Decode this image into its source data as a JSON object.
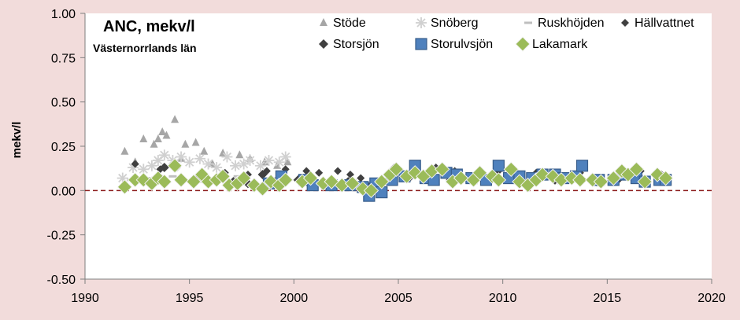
{
  "colors": {
    "background": "#f2dcdb",
    "plot_area": "#ffffff",
    "zero_line": "#8b1a1a",
    "stode": "#a6a6a6",
    "snoberg": "#d0d0d0",
    "ruskhojden": "#bfbfbf",
    "hallvattnet": "#404040",
    "storsjon": "#404040",
    "storulvsjon_fill": "#4f81bd",
    "storulvsjon_edge": "#385d8a",
    "lakamark_fill": "#9bbb59",
    "lakamark_edge": "#f2f2f2"
  },
  "chart_data": {
    "type": "scatter",
    "title": "ANC, mekv/l",
    "subtitle": "Västernorrlands län",
    "xlabel": "",
    "ylabel": "mekv/l",
    "xlim": [
      1990,
      2020
    ],
    "ylim": [
      -0.5,
      1.0
    ],
    "x_ticks": [
      "1990",
      "1995",
      "2000",
      "2005",
      "2010",
      "2015",
      "2020"
    ],
    "y_ticks": [
      "1.00",
      "0.75",
      "0.50",
      "0.25",
      "0.00",
      "-0.25",
      "-0.50"
    ],
    "grid": false,
    "reference_line": 0.0,
    "legend_position": "top-right",
    "series": [
      {
        "name": "Stöde",
        "marker": "triangle",
        "points": [
          [
            1991.9,
            0.22
          ],
          [
            1992.4,
            0.16
          ],
          [
            1992.8,
            0.29
          ],
          [
            1993.3,
            0.26
          ],
          [
            1993.5,
            0.29
          ],
          [
            1993.7,
            0.33
          ],
          [
            1993.9,
            0.31
          ],
          [
            1994.3,
            0.4
          ],
          [
            1994.6,
            0.18
          ],
          [
            1994.8,
            0.26
          ],
          [
            1995.3,
            0.27
          ],
          [
            1995.7,
            0.22
          ],
          [
            1996.1,
            0.15
          ],
          [
            1996.6,
            0.21
          ],
          [
            1997.4,
            0.2
          ],
          [
            1997.9,
            0.18
          ],
          [
            1998.6,
            0.16
          ],
          [
            1999.2,
            0.14
          ],
          [
            1999.7,
            0.16
          ]
        ]
      },
      {
        "name": "Snöberg",
        "marker": "asterisk",
        "points": [
          [
            1991.8,
            0.07
          ],
          [
            1992.3,
            0.13
          ],
          [
            1992.8,
            0.12
          ],
          [
            1993.2,
            0.14
          ],
          [
            1993.5,
            0.17
          ],
          [
            1993.8,
            0.2
          ],
          [
            1994.2,
            0.17
          ],
          [
            1994.6,
            0.19
          ],
          [
            1995.0,
            0.16
          ],
          [
            1995.5,
            0.18
          ],
          [
            1995.9,
            0.15
          ],
          [
            1996.3,
            0.13
          ],
          [
            1996.8,
            0.19
          ],
          [
            1997.2,
            0.14
          ],
          [
            1997.6,
            0.15
          ],
          [
            1997.9,
            0.17
          ],
          [
            1998.4,
            0.14
          ],
          [
            1998.8,
            0.17
          ],
          [
            1999.3,
            0.16
          ],
          [
            1999.6,
            0.19
          ]
        ]
      },
      {
        "name": "Ruskhöjden",
        "marker": "dash",
        "points": [
          [
            1992.2,
            0.06
          ],
          [
            1993.2,
            0.07
          ],
          [
            1994.2,
            0.08
          ],
          [
            1995.4,
            0.05
          ],
          [
            1996.4,
            0.06
          ],
          [
            1997.3,
            0.08
          ],
          [
            1998.6,
            0.04
          ],
          [
            1999.5,
            0.05
          ]
        ]
      },
      {
        "name": "Hällvattnet",
        "marker": "diamond-small",
        "points": [
          [
            1992.4,
            0.15
          ],
          [
            1993.6,
            0.12
          ],
          [
            1994.4,
            0.13
          ],
          [
            1995.6,
            0.09
          ],
          [
            1996.7,
            0.1
          ],
          [
            1997.8,
            0.09
          ],
          [
            1998.7,
            0.11
          ],
          [
            1999.6,
            0.12
          ],
          [
            2000.6,
            0.11
          ],
          [
            2001.2,
            0.1
          ],
          [
            2002.1,
            0.11
          ],
          [
            2002.7,
            0.09
          ],
          [
            2003.2,
            0.07
          ],
          [
            2004.8,
            0.13
          ],
          [
            2005.8,
            0.14
          ],
          [
            2006.8,
            0.13
          ],
          [
            2007.7,
            0.11
          ],
          [
            2008.8,
            0.1
          ],
          [
            2009.8,
            0.11
          ],
          [
            2010.7,
            0.09
          ],
          [
            2011.6,
            0.1
          ],
          [
            2012.6,
            0.09
          ],
          [
            2013.7,
            0.1
          ],
          [
            2014.6,
            0.07
          ],
          [
            2015.6,
            0.1
          ],
          [
            2016.6,
            0.11
          ],
          [
            2017.6,
            0.09
          ]
        ]
      },
      {
        "name": "Storsjön",
        "marker": "diamond",
        "points": [
          [
            1993.4,
            0.06
          ],
          [
            1993.8,
            0.13
          ],
          [
            1994.7,
            0.06
          ],
          [
            1995.5,
            0.08
          ],
          [
            1996.2,
            0.06
          ],
          [
            1997.1,
            0.05
          ],
          [
            1997.8,
            0.04
          ],
          [
            1998.5,
            0.09
          ],
          [
            1999.3,
            0.07
          ],
          [
            2000.2,
            0.06
          ],
          [
            2000.9,
            0.05
          ],
          [
            2001.8,
            0.06
          ],
          [
            2002.6,
            0.05
          ],
          [
            2003.6,
            0.02
          ],
          [
            2004.6,
            0.07
          ],
          [
            2005.5,
            0.07
          ],
          [
            2006.6,
            0.08
          ],
          [
            2007.5,
            0.06
          ],
          [
            2008.5,
            0.07
          ],
          [
            2009.7,
            0.06
          ],
          [
            2010.6,
            0.06
          ],
          [
            2011.5,
            0.06
          ],
          [
            2012.5,
            0.06
          ],
          [
            2013.6,
            0.07
          ],
          [
            2014.5,
            0.05
          ],
          [
            2015.5,
            0.06
          ],
          [
            2016.5,
            0.07
          ],
          [
            2017.5,
            0.06
          ]
        ]
      },
      {
        "name": "Storulvsjön",
        "marker": "square",
        "points": [
          [
            1998.8,
            0.04
          ],
          [
            1999.4,
            0.08
          ],
          [
            2000.5,
            0.06
          ],
          [
            2000.9,
            0.03
          ],
          [
            2001.8,
            0.03
          ],
          [
            2002.7,
            0.03
          ],
          [
            2003.3,
            0.02
          ],
          [
            2003.6,
            -0.03
          ],
          [
            2003.9,
            0.04
          ],
          [
            2004.2,
            -0.01
          ],
          [
            2004.7,
            0.06
          ],
          [
            2005.3,
            0.08
          ],
          [
            2005.8,
            0.14
          ],
          [
            2006.3,
            0.07
          ],
          [
            2006.7,
            0.06
          ],
          [
            2007.3,
            0.1
          ],
          [
            2007.8,
            0.09
          ],
          [
            2008.5,
            0.07
          ],
          [
            2009.2,
            0.06
          ],
          [
            2009.8,
            0.14
          ],
          [
            2010.3,
            0.07
          ],
          [
            2010.8,
            0.08
          ],
          [
            2011.4,
            0.07
          ],
          [
            2011.9,
            0.09
          ],
          [
            2012.5,
            0.09
          ],
          [
            2012.9,
            0.07
          ],
          [
            2013.5,
            0.08
          ],
          [
            2013.8,
            0.14
          ],
          [
            2014.6,
            0.06
          ],
          [
            2015.3,
            0.06
          ],
          [
            2015.8,
            0.09
          ],
          [
            2016.4,
            0.07
          ],
          [
            2016.8,
            0.05
          ],
          [
            2017.5,
            0.06
          ],
          [
            2017.8,
            0.06
          ]
        ]
      },
      {
        "name": "Lakamark",
        "marker": "diamond-green",
        "points": [
          [
            1991.9,
            0.02
          ],
          [
            1992.4,
            0.06
          ],
          [
            1992.8,
            0.06
          ],
          [
            1993.2,
            0.04
          ],
          [
            1993.5,
            0.07
          ],
          [
            1993.8,
            0.05
          ],
          [
            1994.3,
            0.14
          ],
          [
            1994.6,
            0.06
          ],
          [
            1995.2,
            0.05
          ],
          [
            1995.6,
            0.09
          ],
          [
            1995.9,
            0.05
          ],
          [
            1996.3,
            0.06
          ],
          [
            1996.6,
            0.08
          ],
          [
            1996.9,
            0.03
          ],
          [
            1997.3,
            0.04
          ],
          [
            1997.6,
            0.07
          ],
          [
            1998.1,
            0.03
          ],
          [
            1998.5,
            0.01
          ],
          [
            1998.9,
            0.05
          ],
          [
            1999.3,
            0.03
          ],
          [
            1999.6,
            0.06
          ],
          [
            2000.4,
            0.05
          ],
          [
            2000.8,
            0.07
          ],
          [
            2001.4,
            0.04
          ],
          [
            2001.8,
            0.05
          ],
          [
            2002.3,
            0.03
          ],
          [
            2002.8,
            0.04
          ],
          [
            2003.3,
            0.01
          ],
          [
            2003.7,
            0.0
          ],
          [
            2004.2,
            0.05
          ],
          [
            2004.6,
            0.09
          ],
          [
            2004.9,
            0.12
          ],
          [
            2005.4,
            0.08
          ],
          [
            2005.8,
            0.1
          ],
          [
            2006.2,
            0.08
          ],
          [
            2006.6,
            0.11
          ],
          [
            2007.1,
            0.12
          ],
          [
            2007.6,
            0.05
          ],
          [
            2008.0,
            0.07
          ],
          [
            2008.6,
            0.06
          ],
          [
            2008.9,
            0.1
          ],
          [
            2009.5,
            0.08
          ],
          [
            2009.8,
            0.06
          ],
          [
            2010.4,
            0.12
          ],
          [
            2010.8,
            0.05
          ],
          [
            2011.2,
            0.03
          ],
          [
            2011.6,
            0.06
          ],
          [
            2011.9,
            0.09
          ],
          [
            2012.4,
            0.08
          ],
          [
            2012.8,
            0.06
          ],
          [
            2013.3,
            0.07
          ],
          [
            2013.7,
            0.06
          ],
          [
            2014.3,
            0.06
          ],
          [
            2014.7,
            0.05
          ],
          [
            2015.3,
            0.07
          ],
          [
            2015.7,
            0.11
          ],
          [
            2016.0,
            0.09
          ],
          [
            2016.4,
            0.12
          ],
          [
            2016.8,
            0.05
          ],
          [
            2017.4,
            0.09
          ],
          [
            2017.8,
            0.07
          ]
        ]
      }
    ]
  }
}
